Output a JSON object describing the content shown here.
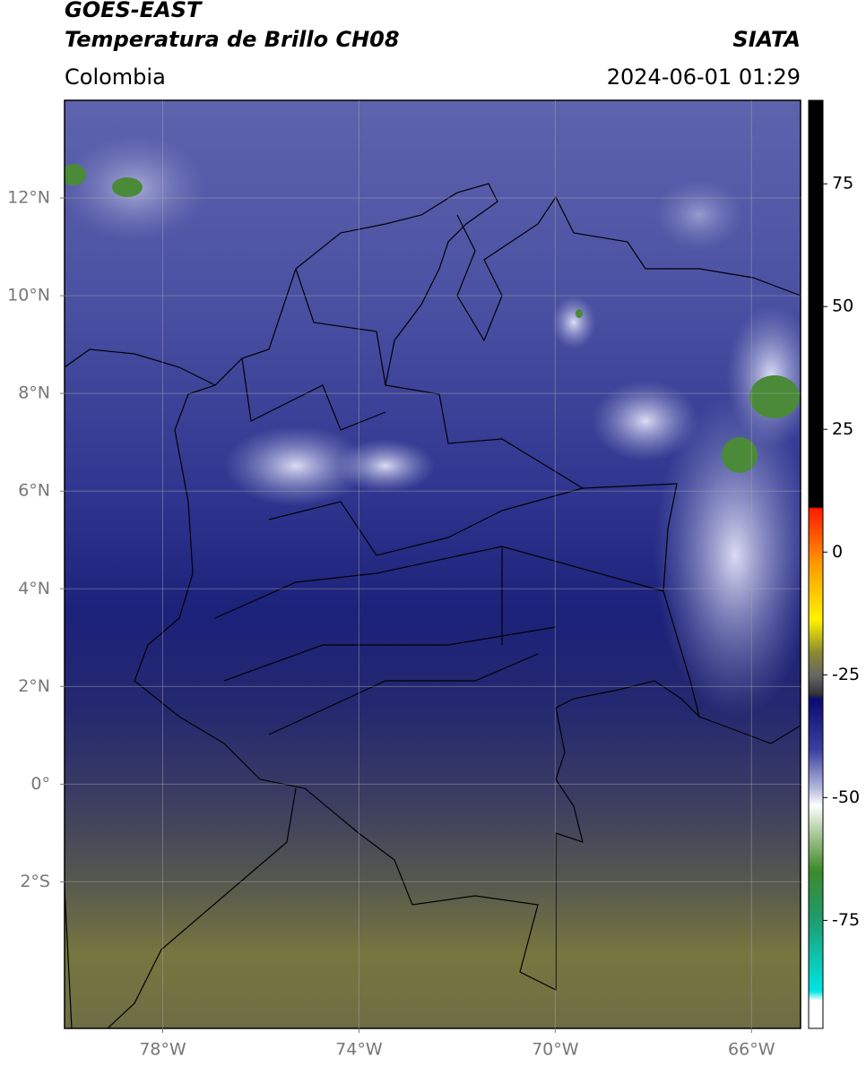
{
  "header": {
    "title_line1": "GOES-EAST",
    "title_line2": "Temperatura de Brillo CH08",
    "region": "Colombia",
    "source": "SIATA",
    "datetime": "2024-06-01 01:29"
  },
  "map": {
    "lonlim": [
      -80,
      -65
    ],
    "latlim": [
      -5,
      14
    ],
    "lonticks": [
      {
        "value": -78,
        "label": "78°W"
      },
      {
        "value": -74,
        "label": "74°W"
      },
      {
        "value": -70,
        "label": "70°W"
      },
      {
        "value": -66,
        "label": "66°W"
      }
    ],
    "latticks": [
      {
        "value": 12,
        "label": "12°N"
      },
      {
        "value": 10,
        "label": "10°N"
      },
      {
        "value": 8,
        "label": "8°N"
      },
      {
        "value": 6,
        "label": "6°N"
      },
      {
        "value": 4,
        "label": "4°N"
      },
      {
        "value": 2,
        "label": "2°N"
      },
      {
        "value": 0,
        "label": "0°"
      },
      {
        "value": -2,
        "label": "2°S"
      }
    ]
  },
  "colorbar": {
    "lim": [
      -97,
      92
    ],
    "ticks": [
      75,
      50,
      25,
      0,
      -25,
      -50,
      -75
    ]
  }
}
